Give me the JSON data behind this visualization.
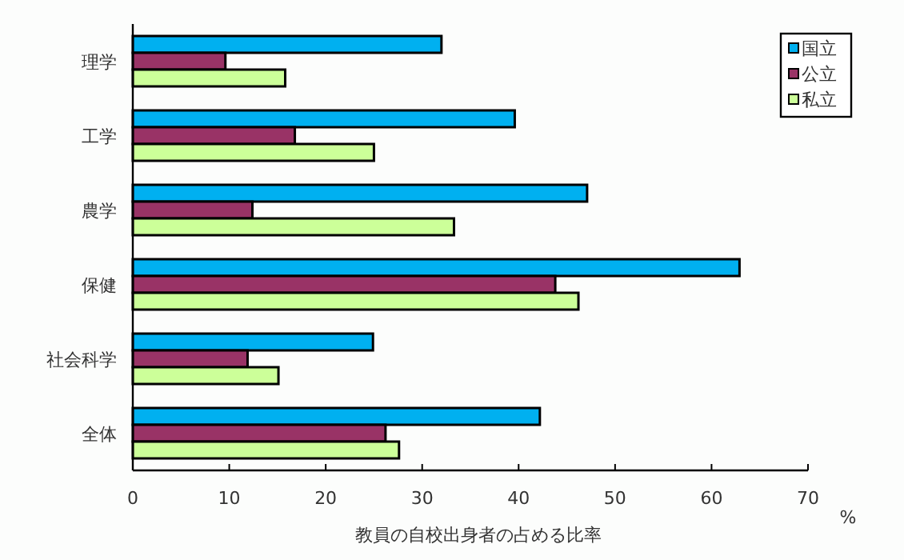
{
  "chart_data": {
    "type": "bar",
    "orientation": "horizontal",
    "categories": [
      "理学",
      "工学",
      "農学",
      "保健",
      "社会科学",
      "全体"
    ],
    "series": [
      {
        "name": "国立",
        "color": "#00b0f0",
        "values": [
          32.0,
          39.6,
          47.1,
          62.9,
          24.9,
          42.2
        ]
      },
      {
        "name": "公立",
        "color": "#993366",
        "values": [
          9.6,
          16.8,
          12.4,
          43.8,
          11.9,
          26.2
        ]
      },
      {
        "name": "私立",
        "color": "#ccff99",
        "values": [
          15.8,
          25.0,
          33.3,
          46.2,
          15.1,
          27.6
        ]
      }
    ],
    "xlim": [
      0,
      70
    ],
    "xticks": [
      0,
      10,
      20,
      30,
      40,
      50,
      60,
      70
    ],
    "xlabel": "教員の自校出身者の占める比率",
    "annotations": [
      "%"
    ],
    "legend": "top right"
  }
}
